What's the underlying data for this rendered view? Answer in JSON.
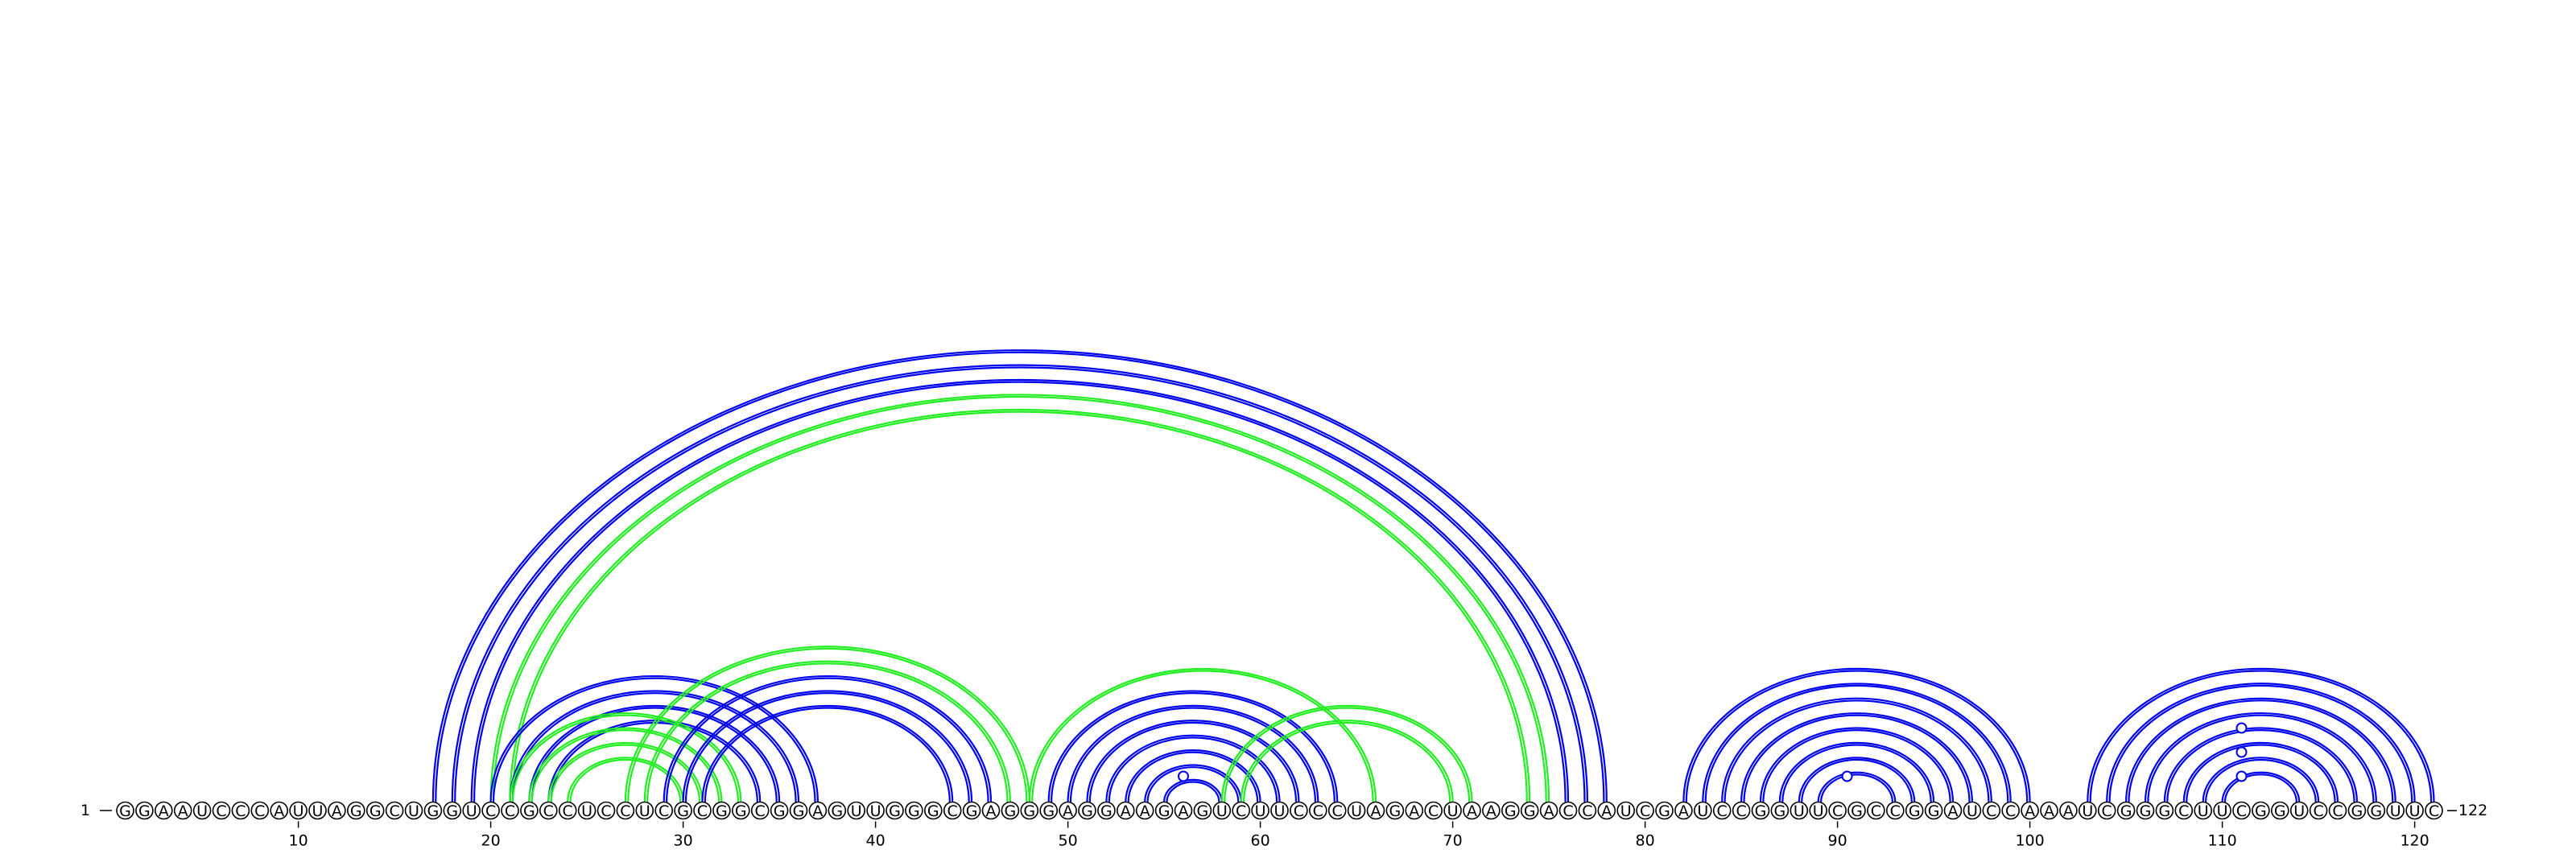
{
  "diagram": {
    "type": "rna-arc-diagram",
    "sequence": "GGAAUCCCAUUAGGCUGGUCCGCCUCCUCGCGGCGGAGUUGGGCGAGGGAGGAAGAGUCUUCCCUAGACUAAGGACCAUCGAUCCGGUUCGCCGGAUCCAAAUCGGGCUUCGGUCCGGUUC",
    "start_label": "1",
    "end_label": "122",
    "tick_values": [
      10,
      20,
      30,
      40,
      50,
      60,
      70,
      80,
      90,
      100,
      110,
      120
    ],
    "colors": {
      "blue": "#0000ee",
      "green": "#22ee22"
    },
    "markers": [
      {
        "i": 56,
        "j": 56
      },
      {
        "i": 90,
        "j": 91
      },
      {
        "i": 111,
        "j": 111
      },
      {
        "i": 111,
        "j": 111
      },
      {
        "i": 111,
        "j": 111
      }
    ],
    "arcs": [
      {
        "i": 17,
        "j": 78,
        "color": "blue"
      },
      {
        "i": 18,
        "j": 77,
        "color": "blue"
      },
      {
        "i": 19,
        "j": 76,
        "color": "blue"
      },
      {
        "i": 20,
        "j": 75,
        "color": "green"
      },
      {
        "i": 21,
        "j": 74,
        "color": "green"
      },
      {
        "i": 20,
        "j": 37,
        "color": "blue"
      },
      {
        "i": 21,
        "j": 36,
        "color": "blue"
      },
      {
        "i": 22,
        "j": 35,
        "color": "blue"
      },
      {
        "i": 23,
        "j": 34,
        "color": "blue"
      },
      {
        "i": 22,
        "j": 32,
        "color": "green"
      },
      {
        "i": 23,
        "j": 31,
        "color": "green"
      },
      {
        "i": 24,
        "j": 30,
        "color": "green"
      },
      {
        "i": 21,
        "j": 33,
        "color": "green"
      },
      {
        "i": 27,
        "j": 48,
        "color": "green"
      },
      {
        "i": 28,
        "j": 47,
        "color": "green"
      },
      {
        "i": 29,
        "j": 46,
        "color": "blue"
      },
      {
        "i": 30,
        "j": 45,
        "color": "blue"
      },
      {
        "i": 31,
        "j": 44,
        "color": "blue"
      },
      {
        "i": 48,
        "j": 66,
        "color": "green"
      },
      {
        "i": 49,
        "j": 64,
        "color": "blue"
      },
      {
        "i": 50,
        "j": 63,
        "color": "blue"
      },
      {
        "i": 51,
        "j": 62,
        "color": "blue"
      },
      {
        "i": 52,
        "j": 61,
        "color": "blue"
      },
      {
        "i": 53,
        "j": 60,
        "color": "blue"
      },
      {
        "i": 54,
        "j": 59,
        "color": "blue"
      },
      {
        "i": 55,
        "j": 58,
        "color": "blue"
      },
      {
        "i": 58,
        "j": 71,
        "color": "green"
      },
      {
        "i": 59,
        "j": 70,
        "color": "green"
      },
      {
        "i": 82,
        "j": 100,
        "color": "blue"
      },
      {
        "i": 83,
        "j": 99,
        "color": "blue"
      },
      {
        "i": 84,
        "j": 98,
        "color": "blue"
      },
      {
        "i": 85,
        "j": 97,
        "color": "blue"
      },
      {
        "i": 86,
        "j": 96,
        "color": "blue"
      },
      {
        "i": 87,
        "j": 95,
        "color": "blue"
      },
      {
        "i": 88,
        "j": 94,
        "color": "blue"
      },
      {
        "i": 89,
        "j": 93,
        "color": "blue"
      },
      {
        "i": 103,
        "j": 121,
        "color": "blue"
      },
      {
        "i": 104,
        "j": 120,
        "color": "blue"
      },
      {
        "i": 105,
        "j": 119,
        "color": "blue"
      },
      {
        "i": 106,
        "j": 118,
        "color": "blue"
      },
      {
        "i": 107,
        "j": 117,
        "color": "blue"
      },
      {
        "i": 108,
        "j": 116,
        "color": "blue"
      },
      {
        "i": 109,
        "j": 115,
        "color": "blue"
      },
      {
        "i": 110,
        "j": 114,
        "color": "blue"
      }
    ]
  }
}
